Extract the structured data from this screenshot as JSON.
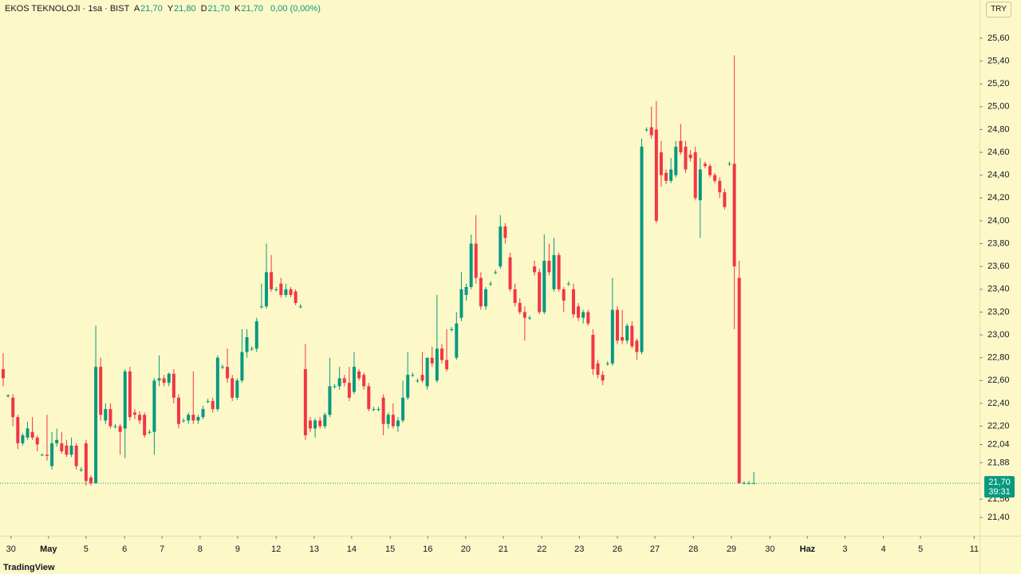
{
  "chart_data": {
    "type": "candlestick",
    "symbol": "EKOS TEKNOLOJI · 1sa · BIST",
    "legend": [
      {
        "label": "A",
        "value": "21,70"
      },
      {
        "label": "Y",
        "value": "21,80"
      },
      {
        "label": "D",
        "value": "21,70"
      },
      {
        "label": "K",
        "value": "21,70"
      }
    ],
    "change": "0,00 (0,00%)",
    "currency": "TRY",
    "brand": "TradingView",
    "up_color": "#089981",
    "down_color": "#f23645",
    "background": "#fdf8c8",
    "grid": false,
    "last_price": {
      "value": 21.7,
      "label": "21,70"
    },
    "countdown": "39:31",
    "ylim": [
      21.24,
      25.935
    ],
    "yticks": [
      {
        "value": 21.4,
        "label": "21,40"
      },
      {
        "value": 21.56,
        "label": "21,56"
      },
      {
        "value": 21.88,
        "label": "21,88"
      },
      {
        "value": 22.04,
        "label": "22,04"
      },
      {
        "value": 22.2,
        "label": "22,20"
      },
      {
        "value": 22.4,
        "label": "22,40"
      },
      {
        "value": 22.6,
        "label": "22,60"
      },
      {
        "value": 22.8,
        "label": "22,80"
      },
      {
        "value": 23.0,
        "label": "23,00"
      },
      {
        "value": 23.2,
        "label": "23,20"
      },
      {
        "value": 23.4,
        "label": "23,40"
      },
      {
        "value": 23.6,
        "label": "23,60"
      },
      {
        "value": 23.8,
        "label": "23,80"
      },
      {
        "value": 24.0,
        "label": "24,00"
      },
      {
        "value": 24.2,
        "label": "24,20"
      },
      {
        "value": 24.4,
        "label": "24,40"
      },
      {
        "value": 24.6,
        "label": "24,60"
      },
      {
        "value": 24.8,
        "label": "24,80"
      },
      {
        "value": 25.0,
        "label": "25,00"
      },
      {
        "value": 25.2,
        "label": "25,20"
      },
      {
        "value": 25.4,
        "label": "25,40"
      },
      {
        "value": 25.6,
        "label": "25,60"
      }
    ],
    "xlim": [
      -0.65,
      200.3
    ],
    "xticks": [
      {
        "value": 1.6,
        "label": "30"
      },
      {
        "value": 9.3,
        "label": "May"
      },
      {
        "value": 17.0,
        "label": "5"
      },
      {
        "value": 24.9,
        "label": "6"
      },
      {
        "value": 32.6,
        "label": "7"
      },
      {
        "value": 40.4,
        "label": "8"
      },
      {
        "value": 48.1,
        "label": "9"
      },
      {
        "value": 56.0,
        "label": "12"
      },
      {
        "value": 63.8,
        "label": "13"
      },
      {
        "value": 71.5,
        "label": "14"
      },
      {
        "value": 79.4,
        "label": "15"
      },
      {
        "value": 87.1,
        "label": "16"
      },
      {
        "value": 94.9,
        "label": "20"
      },
      {
        "value": 102.6,
        "label": "21"
      },
      {
        "value": 110.5,
        "label": "22"
      },
      {
        "value": 118.2,
        "label": "23"
      },
      {
        "value": 126.0,
        "label": "26"
      },
      {
        "value": 133.7,
        "label": "27"
      },
      {
        "value": 141.6,
        "label": "28"
      },
      {
        "value": 149.4,
        "label": "29"
      },
      {
        "value": 157.3,
        "label": "30"
      },
      {
        "value": 165.0,
        "label": "Haz"
      },
      {
        "value": 172.7,
        "label": "3"
      },
      {
        "value": 180.6,
        "label": "4"
      },
      {
        "value": 188.2,
        "label": "5"
      },
      {
        "value": 199.2,
        "label": "11"
      }
    ],
    "candles": [
      {
        "o": 22.7,
        "h": 22.84,
        "l": 22.55,
        "c": 22.62
      },
      {
        "o": 22.47,
        "h": 22.48,
        "l": 22.45,
        "c": 22.47
      },
      {
        "o": 22.45,
        "h": 22.48,
        "l": 22.2,
        "c": 22.28
      },
      {
        "o": 22.28,
        "h": 22.3,
        "l": 22.0,
        "c": 22.05
      },
      {
        "o": 22.05,
        "h": 22.14,
        "l": 22.03,
        "c": 22.12
      },
      {
        "o": 22.1,
        "h": 22.24,
        "l": 22.08,
        "c": 22.18
      },
      {
        "o": 22.15,
        "h": 22.28,
        "l": 22.08,
        "c": 22.1
      },
      {
        "o": 22.1,
        "h": 22.12,
        "l": 21.98,
        "c": 22.04
      },
      {
        "o": 21.95,
        "h": 21.96,
        "l": 21.94,
        "c": 21.95
      },
      {
        "o": 21.95,
        "h": 22.3,
        "l": 21.9,
        "c": 21.94
      },
      {
        "o": 21.85,
        "h": 22.15,
        "l": 21.82,
        "c": 22.05
      },
      {
        "o": 22.05,
        "h": 22.18,
        "l": 22.02,
        "c": 22.08
      },
      {
        "o": 22.05,
        "h": 22.15,
        "l": 21.96,
        "c": 21.98
      },
      {
        "o": 22.03,
        "h": 22.08,
        "l": 21.93,
        "c": 21.95
      },
      {
        "o": 21.95,
        "h": 22.1,
        "l": 21.93,
        "c": 22.03
      },
      {
        "o": 22.03,
        "h": 22.05,
        "l": 21.82,
        "c": 21.85
      },
      {
        "o": 21.82,
        "h": 21.84,
        "l": 21.8,
        "c": 21.82
      },
      {
        "o": 22.05,
        "h": 22.08,
        "l": 21.68,
        "c": 21.72
      },
      {
        "o": 21.75,
        "h": 21.77,
        "l": 21.68,
        "c": 21.7
      },
      {
        "o": 21.7,
        "h": 23.08,
        "l": 21.7,
        "c": 22.72
      },
      {
        "o": 22.72,
        "h": 22.8,
        "l": 22.25,
        "c": 22.3
      },
      {
        "o": 22.25,
        "h": 22.4,
        "l": 22.22,
        "c": 22.35
      },
      {
        "o": 22.35,
        "h": 22.4,
        "l": 22.18,
        "c": 22.2
      },
      {
        "o": 22.2,
        "h": 22.22,
        "l": 22.18,
        "c": 22.2
      },
      {
        "o": 22.2,
        "h": 22.22,
        "l": 21.95,
        "c": 22.15
      },
      {
        "o": 22.18,
        "h": 22.7,
        "l": 21.92,
        "c": 22.68
      },
      {
        "o": 22.68,
        "h": 22.72,
        "l": 22.25,
        "c": 22.28
      },
      {
        "o": 22.32,
        "h": 22.35,
        "l": 22.26,
        "c": 22.3
      },
      {
        "o": 22.3,
        "h": 22.33,
        "l": 22.22,
        "c": 22.25
      },
      {
        "o": 22.3,
        "h": 22.32,
        "l": 22.1,
        "c": 22.12
      },
      {
        "o": 22.15,
        "h": 22.17,
        "l": 22.13,
        "c": 22.15
      },
      {
        "o": 22.15,
        "h": 22.62,
        "l": 21.95,
        "c": 22.6
      },
      {
        "o": 22.6,
        "h": 22.82,
        "l": 22.55,
        "c": 22.62
      },
      {
        "o": 22.62,
        "h": 22.65,
        "l": 22.55,
        "c": 22.58
      },
      {
        "o": 22.58,
        "h": 22.67,
        "l": 22.55,
        "c": 22.66
      },
      {
        "o": 22.66,
        "h": 22.7,
        "l": 22.4,
        "c": 22.45
      },
      {
        "o": 22.45,
        "h": 22.48,
        "l": 22.18,
        "c": 22.22
      },
      {
        "o": 22.25,
        "h": 22.27,
        "l": 22.23,
        "c": 22.25
      },
      {
        "o": 22.25,
        "h": 22.32,
        "l": 22.22,
        "c": 22.3
      },
      {
        "o": 22.3,
        "h": 22.68,
        "l": 22.22,
        "c": 22.25
      },
      {
        "o": 22.25,
        "h": 22.3,
        "l": 22.22,
        "c": 22.28
      },
      {
        "o": 22.28,
        "h": 22.38,
        "l": 22.26,
        "c": 22.35
      },
      {
        "o": 22.42,
        "h": 22.44,
        "l": 22.4,
        "c": 22.42
      },
      {
        "o": 22.42,
        "h": 22.45,
        "l": 22.32,
        "c": 22.35
      },
      {
        "o": 22.35,
        "h": 22.82,
        "l": 22.33,
        "c": 22.8
      },
      {
        "o": 22.72,
        "h": 22.74,
        "l": 22.7,
        "c": 22.72
      },
      {
        "o": 22.72,
        "h": 22.88,
        "l": 22.58,
        "c": 22.62
      },
      {
        "o": 22.62,
        "h": 22.65,
        "l": 22.42,
        "c": 22.45
      },
      {
        "o": 22.45,
        "h": 22.62,
        "l": 22.43,
        "c": 22.6
      },
      {
        "o": 22.6,
        "h": 23.05,
        "l": 22.58,
        "c": 22.85
      },
      {
        "o": 22.85,
        "h": 23.05,
        "l": 22.8,
        "c": 22.98
      },
      {
        "o": 22.88,
        "h": 22.9,
        "l": 22.86,
        "c": 22.88
      },
      {
        "o": 22.88,
        "h": 23.15,
        "l": 22.85,
        "c": 23.12
      },
      {
        "o": 23.25,
        "h": 23.45,
        "l": 23.23,
        "c": 23.25
      },
      {
        "o": 23.25,
        "h": 23.8,
        "l": 23.23,
        "c": 23.55
      },
      {
        "o": 23.55,
        "h": 23.7,
        "l": 23.38,
        "c": 23.4
      },
      {
        "o": 23.4,
        "h": 23.42,
        "l": 23.38,
        "c": 23.4
      },
      {
        "o": 23.45,
        "h": 23.5,
        "l": 23.33,
        "c": 23.35
      },
      {
        "o": 23.35,
        "h": 23.45,
        "l": 23.33,
        "c": 23.4
      },
      {
        "o": 23.4,
        "h": 23.42,
        "l": 23.33,
        "c": 23.35
      },
      {
        "o": 23.38,
        "h": 23.4,
        "l": 23.26,
        "c": 23.28
      },
      {
        "o": 23.25,
        "h": 23.27,
        "l": 23.23,
        "c": 23.25
      },
      {
        "o": 22.7,
        "h": 22.92,
        "l": 22.08,
        "c": 22.12
      },
      {
        "o": 22.25,
        "h": 22.28,
        "l": 22.15,
        "c": 22.18
      },
      {
        "o": 22.18,
        "h": 22.27,
        "l": 22.1,
        "c": 22.25
      },
      {
        "o": 22.25,
        "h": 22.28,
        "l": 22.18,
        "c": 22.2
      },
      {
        "o": 22.2,
        "h": 22.32,
        "l": 22.18,
        "c": 22.3
      },
      {
        "o": 22.3,
        "h": 22.8,
        "l": 22.28,
        "c": 22.55
      },
      {
        "o": 22.55,
        "h": 22.57,
        "l": 22.53,
        "c": 22.55
      },
      {
        "o": 22.55,
        "h": 22.72,
        "l": 22.52,
        "c": 22.62
      },
      {
        "o": 22.62,
        "h": 22.65,
        "l": 22.55,
        "c": 22.58
      },
      {
        "o": 22.58,
        "h": 22.72,
        "l": 22.42,
        "c": 22.45
      },
      {
        "o": 22.5,
        "h": 22.85,
        "l": 22.48,
        "c": 22.72
      },
      {
        "o": 22.68,
        "h": 22.7,
        "l": 22.6,
        "c": 22.62
      },
      {
        "o": 22.65,
        "h": 22.67,
        "l": 22.52,
        "c": 22.55
      },
      {
        "o": 22.55,
        "h": 22.58,
        "l": 22.33,
        "c": 22.35
      },
      {
        "o": 22.35,
        "h": 22.37,
        "l": 22.33,
        "c": 22.35
      },
      {
        "o": 22.35,
        "h": 22.37,
        "l": 22.33,
        "c": 22.35
      },
      {
        "o": 22.45,
        "h": 22.48,
        "l": 22.12,
        "c": 22.22
      },
      {
        "o": 22.22,
        "h": 22.32,
        "l": 22.18,
        "c": 22.3
      },
      {
        "o": 22.3,
        "h": 22.4,
        "l": 22.18,
        "c": 22.2
      },
      {
        "o": 22.2,
        "h": 22.28,
        "l": 22.15,
        "c": 22.25
      },
      {
        "o": 22.25,
        "h": 22.6,
        "l": 22.23,
        "c": 22.45
      },
      {
        "o": 22.45,
        "h": 22.85,
        "l": 22.43,
        "c": 22.65
      },
      {
        "o": 22.65,
        "h": 22.67,
        "l": 22.63,
        "c": 22.65
      },
      {
        "o": 22.6,
        "h": 22.62,
        "l": 22.58,
        "c": 22.6
      },
      {
        "o": 22.65,
        "h": 22.85,
        "l": 22.58,
        "c": 22.6
      },
      {
        "o": 22.55,
        "h": 22.8,
        "l": 22.52,
        "c": 22.8
      },
      {
        "o": 22.8,
        "h": 22.9,
        "l": 22.72,
        "c": 22.75
      },
      {
        "o": 22.6,
        "h": 23.35,
        "l": 22.58,
        "c": 22.88
      },
      {
        "o": 22.88,
        "h": 22.92,
        "l": 22.75,
        "c": 22.78
      },
      {
        "o": 22.78,
        "h": 23.05,
        "l": 22.68,
        "c": 22.7
      },
      {
        "o": 23.05,
        "h": 23.07,
        "l": 23.03,
        "c": 23.05
      },
      {
        "o": 22.8,
        "h": 23.2,
        "l": 22.78,
        "c": 23.1
      },
      {
        "o": 23.15,
        "h": 23.55,
        "l": 23.12,
        "c": 23.4
      },
      {
        "o": 23.35,
        "h": 23.45,
        "l": 23.3,
        "c": 23.42
      },
      {
        "o": 23.42,
        "h": 23.88,
        "l": 23.4,
        "c": 23.8
      },
      {
        "o": 23.8,
        "h": 24.05,
        "l": 23.45,
        "c": 23.5
      },
      {
        "o": 23.5,
        "h": 23.55,
        "l": 23.22,
        "c": 23.25
      },
      {
        "o": 23.25,
        "h": 23.42,
        "l": 23.22,
        "c": 23.4
      },
      {
        "o": 23.45,
        "h": 23.47,
        "l": 23.43,
        "c": 23.45
      },
      {
        "o": 23.55,
        "h": 23.57,
        "l": 23.53,
        "c": 23.55
      },
      {
        "o": 23.6,
        "h": 24.05,
        "l": 23.58,
        "c": 23.95
      },
      {
        "o": 23.95,
        "h": 23.98,
        "l": 23.8,
        "c": 23.85
      },
      {
        "o": 23.68,
        "h": 23.72,
        "l": 23.38,
        "c": 23.4
      },
      {
        "o": 23.4,
        "h": 23.45,
        "l": 23.25,
        "c": 23.28
      },
      {
        "o": 23.28,
        "h": 23.32,
        "l": 23.18,
        "c": 23.2
      },
      {
        "o": 23.2,
        "h": 23.25,
        "l": 22.95,
        "c": 23.15
      },
      {
        "o": 23.15,
        "h": 23.17,
        "l": 23.13,
        "c": 23.15
      },
      {
        "o": 23.6,
        "h": 23.65,
        "l": 23.52,
        "c": 23.55
      },
      {
        "o": 23.55,
        "h": 23.58,
        "l": 23.18,
        "c": 23.2
      },
      {
        "o": 23.2,
        "h": 23.88,
        "l": 23.18,
        "c": 23.65
      },
      {
        "o": 23.65,
        "h": 23.8,
        "l": 23.52,
        "c": 23.55
      },
      {
        "o": 23.4,
        "h": 23.85,
        "l": 23.38,
        "c": 23.7
      },
      {
        "o": 23.7,
        "h": 23.72,
        "l": 23.38,
        "c": 23.4
      },
      {
        "o": 23.4,
        "h": 23.42,
        "l": 23.2,
        "c": 23.3
      },
      {
        "o": 23.45,
        "h": 23.47,
        "l": 23.43,
        "c": 23.45
      },
      {
        "o": 23.4,
        "h": 23.45,
        "l": 23.15,
        "c": 23.18
      },
      {
        "o": 23.25,
        "h": 23.28,
        "l": 23.12,
        "c": 23.15
      },
      {
        "o": 23.15,
        "h": 23.22,
        "l": 23.1,
        "c": 23.2
      },
      {
        "o": 23.2,
        "h": 23.22,
        "l": 23.08,
        "c": 23.1
      },
      {
        "o": 23.0,
        "h": 23.05,
        "l": 22.65,
        "c": 22.7
      },
      {
        "o": 22.75,
        "h": 22.78,
        "l": 22.62,
        "c": 22.65
      },
      {
        "o": 22.65,
        "h": 22.68,
        "l": 22.56,
        "c": 22.6
      },
      {
        "o": 22.75,
        "h": 22.77,
        "l": 22.73,
        "c": 22.75
      },
      {
        "o": 22.75,
        "h": 23.5,
        "l": 22.73,
        "c": 23.22
      },
      {
        "o": 23.22,
        "h": 23.25,
        "l": 22.92,
        "c": 22.95
      },
      {
        "o": 22.98,
        "h": 23.22,
        "l": 22.92,
        "c": 22.95
      },
      {
        "o": 22.95,
        "h": 23.1,
        "l": 22.92,
        "c": 23.08
      },
      {
        "o": 23.08,
        "h": 23.12,
        "l": 22.88,
        "c": 22.9
      },
      {
        "o": 22.95,
        "h": 22.97,
        "l": 22.78,
        "c": 22.85
      },
      {
        "o": 22.85,
        "h": 24.72,
        "l": 22.83,
        "c": 24.65
      },
      {
        "o": 24.8,
        "h": 24.82,
        "l": 24.78,
        "c": 24.8
      },
      {
        "o": 24.82,
        "h": 25.0,
        "l": 24.72,
        "c": 24.75
      },
      {
        "o": 24.8,
        "h": 25.05,
        "l": 23.98,
        "c": 24.0
      },
      {
        "o": 24.6,
        "h": 24.7,
        "l": 24.3,
        "c": 24.4
      },
      {
        "o": 24.42,
        "h": 24.45,
        "l": 24.32,
        "c": 24.35
      },
      {
        "o": 24.35,
        "h": 24.55,
        "l": 24.33,
        "c": 24.45
      },
      {
        "o": 24.4,
        "h": 24.7,
        "l": 24.38,
        "c": 24.65
      },
      {
        "o": 24.7,
        "h": 24.85,
        "l": 24.58,
        "c": 24.6
      },
      {
        "o": 24.65,
        "h": 24.7,
        "l": 24.42,
        "c": 24.45
      },
      {
        "o": 24.58,
        "h": 24.62,
        "l": 24.52,
        "c": 24.55
      },
      {
        "o": 24.6,
        "h": 24.65,
        "l": 24.18,
        "c": 24.2
      },
      {
        "o": 24.18,
        "h": 24.55,
        "l": 23.85,
        "c": 24.45
      },
      {
        "o": 24.5,
        "h": 24.52,
        "l": 24.46,
        "c": 24.48
      },
      {
        "o": 24.48,
        "h": 24.5,
        "l": 24.38,
        "c": 24.4
      },
      {
        "o": 24.4,
        "h": 24.42,
        "l": 24.33,
        "c": 24.35
      },
      {
        "o": 24.35,
        "h": 24.38,
        "l": 24.2,
        "c": 24.25
      },
      {
        "o": 24.25,
        "h": 24.28,
        "l": 24.1,
        "c": 24.12
      },
      {
        "o": 24.5,
        "h": 24.52,
        "l": 24.48,
        "c": 24.5
      },
      {
        "o": 24.5,
        "h": 25.45,
        "l": 23.05,
        "c": 23.6
      },
      {
        "o": 23.5,
        "h": 23.65,
        "l": 21.7,
        "c": 21.7
      },
      {
        "o": 21.7,
        "h": 21.72,
        "l": 21.7,
        "c": 21.7
      },
      {
        "o": 21.7,
        "h": 21.72,
        "l": 21.7,
        "c": 21.7
      },
      {
        "o": 21.7,
        "h": 21.8,
        "l": 21.7,
        "c": 21.7
      }
    ]
  }
}
